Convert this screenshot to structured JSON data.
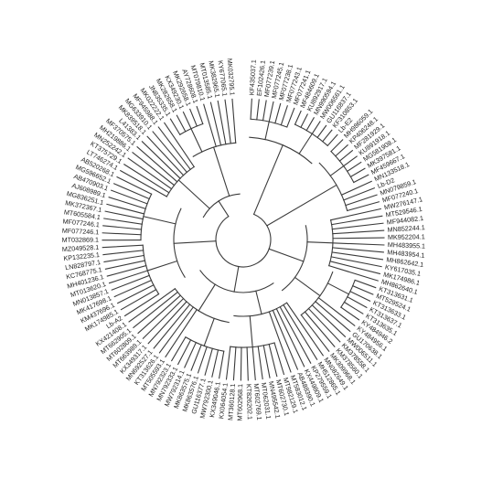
{
  "tree": {
    "layout": "circular",
    "line_color": "#3a3a3a",
    "label_color": "#222222",
    "tips": [
      "KF435037.1",
      "EF102426.1",
      "MF077239.1",
      "MF077245.1",
      "MF077238.1",
      "MF077243.1",
      "MF077241.1",
      "MF484609.1",
      "KU892917.1",
      "MN990594.1",
      "MW006561.1",
      "GU116837.1",
      "KF310853.1",
      "Lb-E2",
      "MH986059.1",
      "KP406248.1",
      "MF281929.1",
      "KU891918.1",
      "MG581908.1",
      "MK397581.1",
      "MF459667.1",
      "MN133518.1",
      "Lb-D2",
      "MN079859.1",
      "MF077240.1",
      "MW276147.1",
      "MT529546.1",
      "MF944082.1",
      "MN852244.1",
      "MK952204.1",
      "MH483955.1",
      "MH483954.1",
      "MH862642.1",
      "KY617035.1",
      "MK174986.1",
      "MH862640.1",
      "KT313631.1",
      "MT529524.1",
      "KT313633.1",
      "KT313637.1",
      "KT313635.1",
      "KY484946.2",
      "KY484956.1",
      "GU170638.1",
      "MW006511.1",
      "KM378558.1",
      "KM378560.1",
      "MK309968.1",
      "MN082649.1",
      "MH512865.1",
      "KP279559.1",
      "KX449809.1",
      "AB488390.1",
      "MT583012.1",
      "MT982129.1",
      "MT602730.1",
      "MN495542.1",
      "MT062031.1",
      "MT602769.1",
      "KT826202.1",
      "MT602968.1",
      "MT360128.1",
      "KX064054.1",
      "KX349046.1",
      "MW792300.1",
      "GU116377.1",
      "MK863576.1",
      "MK863575.1",
      "MW792314.1",
      "MN792333.1",
      "MN792323.1",
      "MT505593.1",
      "KT313626.1",
      "MN692527.1",
      "KX349317.1",
      "MT663989.1",
      "MT602809.1",
      "MT662905.1",
      "KX421408.1",
      "Lb-A2",
      "MK174985.1",
      "KM437696.1",
      "MK417698.1",
      "MN013857.1",
      "MT013620.1",
      "MH401236.1",
      "KC768775.1",
      "LN828797.1",
      "KP132235.1",
      "MZ049528.1",
      "MT032869.1",
      "MF077246.1",
      "MF077246.1",
      "MT605584.1",
      "MK372367.1",
      "MG836251.1",
      "AJ608989.1",
      "AB470903.1",
      "MG596652.1",
      "AB520268.1",
      "LT746274.1",
      "KT375729.1",
      "MN252242.1",
      "MH219886.1",
      "MF370575.1",
      "L41383.1",
      "MK839518.1",
      "MG633910.1",
      "MF945988.1",
      "MK022222.1",
      "JN835335.1",
      "MK282658.1",
      "KX349230.1",
      "MK292658.1",
      "AY728608.1",
      "MT079810.1",
      "MT013585.1",
      "MK382965.1",
      "KY677065.1",
      "MK032795.1"
    ]
  }
}
